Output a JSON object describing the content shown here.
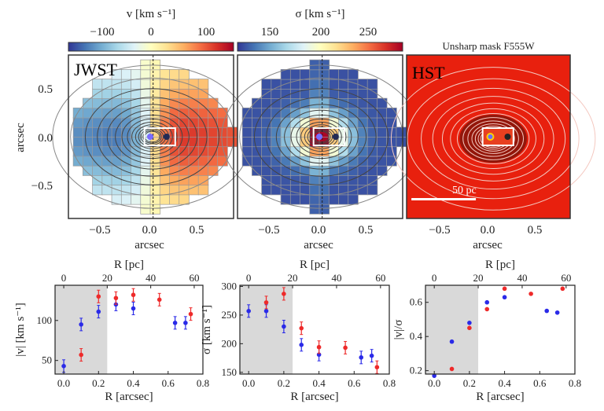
{
  "colors": {
    "blue": "#2a2ae8",
    "red": "#ee2a2a",
    "shade": "#d9d9d9",
    "hst_bg": "#e8200e"
  },
  "maps": [
    {
      "label": "JWST",
      "colorbar_label": "v [km s⁻¹]",
      "colorbar_ticks": [
        "−100",
        "0",
        "100"
      ],
      "colorbar_tick_values": [
        -100,
        0,
        100
      ],
      "clim": [
        -170,
        170
      ],
      "colormap": "RdYlBu_r",
      "xlabel": "arcsec",
      "ylabel": "arcsec",
      "xticks": [
        "−0.5",
        "0.0",
        "0.5"
      ],
      "yticks": [
        "0.5",
        "0.0",
        "−0.5"
      ]
    },
    {
      "label": "",
      "colorbar_label": "σ [km s⁻¹]",
      "colorbar_ticks": [
        "150",
        "200",
        "250"
      ],
      "colorbar_tick_values": [
        150,
        200,
        250
      ],
      "clim": [
        118,
        280
      ],
      "colormap": "RdYlBu_r",
      "xlabel": "arcsec",
      "xticks": [
        "−0.5",
        "0.0",
        "0.5"
      ]
    },
    {
      "label": "HST",
      "title": "Unsharp mask F555W",
      "scalebar_label": "50 pc",
      "xlabel": "arcsec",
      "xticks": [
        "−0.5",
        "0.0",
        "0.5"
      ]
    }
  ],
  "chart_data": [
    {
      "type": "scatter",
      "xlabel": "R [arcsec]",
      "top_xlabel": "R [pc]",
      "ylabel": "|v| [km s⁻¹]",
      "xlim": [
        -0.05,
        0.8
      ],
      "ylim": [
        33,
        144
      ],
      "xticks": [
        0.0,
        0.2,
        0.4,
        0.6,
        0.8
      ],
      "xtick_labels": [
        "0.0",
        "0.2",
        "0.4",
        "0.6",
        "0.8"
      ],
      "top_xtick_labels": [
        "0",
        "20",
        "40",
        "60"
      ],
      "yticks": [
        50,
        100
      ],
      "ytick_labels": [
        "50",
        "100"
      ],
      "shaded_region": [
        -0.05,
        0.25
      ],
      "error_bars": true,
      "series": [
        {
          "color": "blue",
          "x": [
            0.0,
            0.1,
            0.2,
            0.3,
            0.4,
            0.64,
            0.7
          ],
          "y": [
            43,
            95,
            111,
            120,
            115,
            97,
            97
          ]
        },
        {
          "color": "red",
          "x": [
            0.1,
            0.2,
            0.3,
            0.4,
            0.55,
            0.73
          ],
          "y": [
            57,
            130,
            128,
            132,
            126,
            108
          ]
        }
      ]
    },
    {
      "type": "scatter",
      "xlabel": "R [arcsec]",
      "top_xlabel": "R [pc]",
      "ylabel": "σ [km s⁻¹]",
      "xlim": [
        -0.05,
        0.8
      ],
      "ylim": [
        147,
        302
      ],
      "xticks": [
        0.0,
        0.2,
        0.4,
        0.6,
        0.8
      ],
      "xtick_labels": [
        "0.0",
        "0.2",
        "0.4",
        "0.6",
        "0.8"
      ],
      "top_xtick_labels": [
        "0",
        "20",
        "40",
        "60"
      ],
      "yticks": [
        150,
        200,
        250,
        300
      ],
      "ytick_labels": [
        "150",
        "200",
        "250",
        "300"
      ],
      "shaded_region": [
        -0.05,
        0.25
      ],
      "error_bars": true,
      "series": [
        {
          "color": "blue",
          "x": [
            0.0,
            0.1,
            0.2,
            0.3,
            0.4,
            0.64,
            0.7
          ],
          "y": [
            257,
            257,
            230,
            198,
            181,
            176,
            179
          ]
        },
        {
          "color": "red",
          "x": [
            0.1,
            0.2,
            0.3,
            0.4,
            0.55,
            0.73
          ],
          "y": [
            272,
            287,
            227,
            194,
            193,
            159
          ]
        }
      ]
    },
    {
      "type": "scatter",
      "xlabel": "R [arcsec]",
      "top_xlabel": "R [pc]",
      "ylabel": "|v|/σ",
      "xlim": [
        -0.05,
        0.8
      ],
      "ylim": [
        0.18,
        0.7
      ],
      "xticks": [
        0.0,
        0.2,
        0.4,
        0.6,
        0.8
      ],
      "xtick_labels": [
        "0.0",
        "0.2",
        "0.4",
        "0.6",
        "0.8"
      ],
      "top_xtick_labels": [
        "0",
        "20",
        "40",
        "60"
      ],
      "yticks": [
        0.2,
        0.4,
        0.6
      ],
      "ytick_labels": [
        "0.2",
        "0.4",
        "0.6"
      ],
      "shaded_region": [
        -0.05,
        0.25
      ],
      "error_bars": false,
      "series": [
        {
          "color": "blue",
          "x": [
            0.0,
            0.1,
            0.2,
            0.3,
            0.4,
            0.64,
            0.7
          ],
          "y": [
            0.17,
            0.37,
            0.48,
            0.6,
            0.63,
            0.55,
            0.54
          ]
        },
        {
          "color": "red",
          "x": [
            0.1,
            0.2,
            0.3,
            0.4,
            0.55,
            0.73
          ],
          "y": [
            0.21,
            0.45,
            0.56,
            0.68,
            0.65,
            0.68
          ]
        }
      ]
    }
  ]
}
